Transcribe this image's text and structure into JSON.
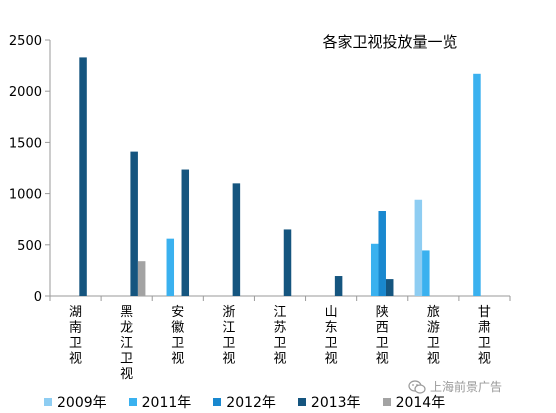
{
  "chart_data": {
    "type": "bar",
    "title": "各家卫视投放量一览",
    "categories": [
      "湖南卫视",
      "黑龙江卫视",
      "安徽卫视",
      "浙江卫视",
      "江苏卫视",
      "山东卫视",
      "陕西卫视",
      "旅游卫视",
      "甘肃卫视"
    ],
    "series": [
      {
        "name": "2009年",
        "color": "#8ecdf2",
        "values": [
          null,
          null,
          null,
          null,
          null,
          null,
          null,
          940,
          null
        ]
      },
      {
        "name": "2011年",
        "color": "#3ab1ef",
        "values": [
          null,
          null,
          560,
          null,
          null,
          null,
          510,
          445,
          2170
        ]
      },
      {
        "name": "2012年",
        "color": "#1988cf",
        "values": [
          null,
          null,
          null,
          null,
          null,
          null,
          830,
          null,
          null
        ]
      },
      {
        "name": "2013年",
        "color": "#15557f",
        "values": [
          2330,
          1410,
          1235,
          1100,
          650,
          195,
          165,
          null,
          null
        ]
      },
      {
        "name": "2014年",
        "color": "#a3a3a3",
        "values": [
          null,
          340,
          null,
          null,
          null,
          null,
          null,
          null,
          null
        ]
      }
    ],
    "xlabel": "",
    "ylabel": "",
    "ylim": [
      0,
      2500
    ],
    "yticks": [
      0,
      500,
      1000,
      1500,
      2000,
      2500
    ],
    "grid": false,
    "legend_position": "bottom"
  },
  "watermark": {
    "icon": "wechat-icon",
    "text": "上海前景广告"
  }
}
